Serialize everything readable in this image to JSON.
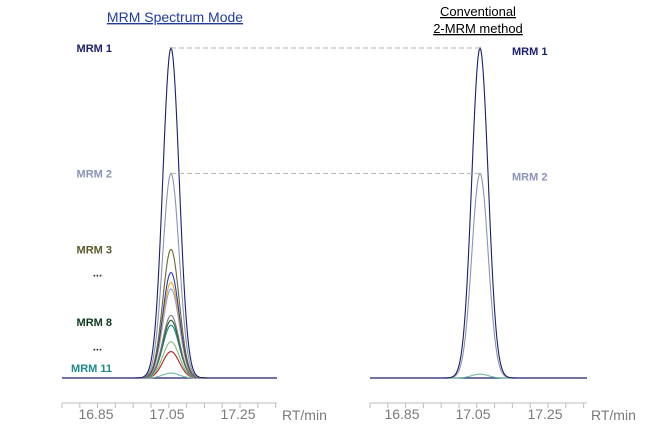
{
  "chart_data": [
    {
      "type": "line",
      "title": "MRM Spectrum Mode",
      "xlabel": "RT/min",
      "xticks": [
        "16.85",
        "17.05",
        "17.25"
      ],
      "xlim": [
        16.79,
        17.37
      ],
      "ylim": [
        0,
        1.02
      ],
      "peak_center": 17.07,
      "series": [
        {
          "name": "MRM 1",
          "color": "#1a1f6e",
          "values": {
            "x": 17.07,
            "y": 1.0
          }
        },
        {
          "name": "MRM 2",
          "color": "#8a93b8",
          "values": {
            "x": 17.07,
            "y": 0.62
          }
        },
        {
          "name": "",
          "color": "#6b6b2f",
          "values": {
            "x": 17.07,
            "y": 0.39
          }
        },
        {
          "name": "",
          "color": "#2a3ab8",
          "values": {
            "x": 17.07,
            "y": 0.32
          }
        },
        {
          "name": "",
          "color": "#f2a81f",
          "values": {
            "x": 17.07,
            "y": 0.29
          }
        },
        {
          "name": "",
          "color": "#8fa3d8",
          "values": {
            "x": 17.07,
            "y": 0.27
          }
        },
        {
          "name": "",
          "color": "#7a7a7a",
          "values": {
            "x": 17.07,
            "y": 0.19
          }
        },
        {
          "name": "",
          "color": "#1f5f2f",
          "values": {
            "x": 17.07,
            "y": 0.175
          }
        },
        {
          "name": "",
          "color": "#1e8a8a",
          "values": {
            "x": 17.07,
            "y": 0.16
          }
        },
        {
          "name": "",
          "color": "#8ab87a",
          "values": {
            "x": 17.07,
            "y": 0.11
          }
        },
        {
          "name": "",
          "color": "#b81f1f",
          "values": {
            "x": 17.07,
            "y": 0.08
          }
        },
        {
          "name": "",
          "color": "#6fb8a8",
          "values": {
            "x": 17.07,
            "y": 0.015
          }
        }
      ],
      "labels": [
        {
          "text": "MRM 1",
          "color": "#1a1f6e",
          "y": 1.0
        },
        {
          "text": "MRM 2",
          "color": "#8a93b8",
          "y": 0.62
        },
        {
          "text": "MRM 3",
          "color": "#5a5a2a",
          "y": 0.39
        },
        {
          "text": "...",
          "color": "#222222",
          "y": 0.32
        },
        {
          "text": "MRM 8",
          "color": "#0f3a1f",
          "y": 0.17
        },
        {
          "text": "...",
          "color": "#222222",
          "y": 0.095
        },
        {
          "text": "MRM 11",
          "color": "#1e8a8a",
          "y": 0.03
        }
      ]
    },
    {
      "type": "line",
      "title": "Conventional\n2-MRM method",
      "title_lines": [
        "Conventional",
        "2-MRM method"
      ],
      "xlabel": "RT/min",
      "xticks": [
        "16.85",
        "17.05",
        "17.25"
      ],
      "xlim": [
        16.79,
        17.37
      ],
      "ylim": [
        0,
        1.02
      ],
      "peak_center": 17.07,
      "series": [
        {
          "name": "MRM 1",
          "color": "#1a1f6e",
          "values": {
            "x": 17.07,
            "y": 1.0
          }
        },
        {
          "name": "MRM 2",
          "color": "#8a93b8",
          "values": {
            "x": 17.07,
            "y": 0.62
          }
        },
        {
          "name": "",
          "color": "#6fb8a8",
          "values": {
            "x": 17.07,
            "y": 0.012
          }
        }
      ],
      "labels": [
        {
          "text": "MRM 1",
          "color": "#1a1f6e",
          "y": 1.0
        },
        {
          "text": "MRM 2",
          "color": "#8a93b8",
          "y": 0.62
        }
      ]
    }
  ]
}
